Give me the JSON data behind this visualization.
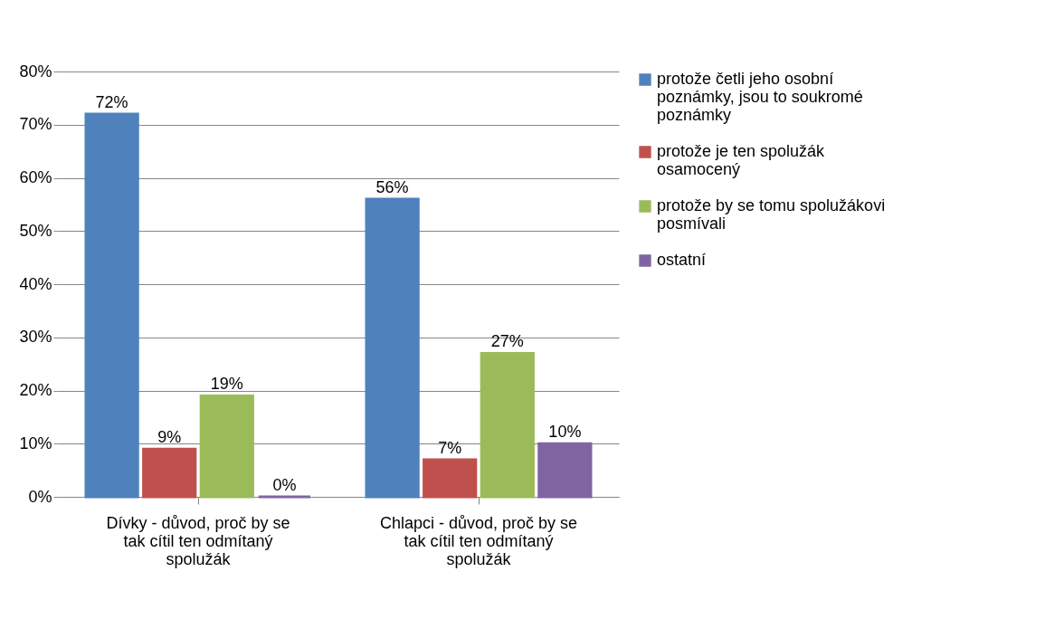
{
  "chart_data": {
    "type": "bar",
    "categories": [
      "Dívky - důvod, proč by se tak cítil ten odmítaný spolužák",
      "Chlapci - důvod, proč by se tak cítil ten odmítaný spolužák"
    ],
    "series": [
      {
        "name": "protože četli jeho osobní poznámky, jsou to soukromé poznámky",
        "color": "#4f81bd",
        "values": [
          72,
          56
        ],
        "value_labels": [
          "72%",
          "56%"
        ]
      },
      {
        "name": "protože je ten spolužák osamocený",
        "color": "#c0504d",
        "values": [
          9,
          7
        ],
        "value_labels": [
          "9%",
          "7%"
        ]
      },
      {
        "name": "protože by se tomu spolužákovi posmívali",
        "color": "#9bbb59",
        "values": [
          19,
          27
        ],
        "value_labels": [
          "19%",
          "27%"
        ]
      },
      {
        "name": "ostatní",
        "color": "#8064a2",
        "values": [
          0,
          10
        ],
        "value_labels": [
          "0%",
          "10%"
        ]
      }
    ],
    "ylim": [
      0,
      80
    ],
    "yticks": [
      {
        "value": 0,
        "label": "0%"
      },
      {
        "value": 10,
        "label": "10%"
      },
      {
        "value": 20,
        "label": "20%"
      },
      {
        "value": 30,
        "label": "30%"
      },
      {
        "value": 40,
        "label": "40%"
      },
      {
        "value": 50,
        "label": "50%"
      },
      {
        "value": 60,
        "label": "60%"
      },
      {
        "value": 70,
        "label": "70%"
      },
      {
        "value": 80,
        "label": "80%"
      }
    ],
    "grid": "y",
    "legend": "right"
  }
}
